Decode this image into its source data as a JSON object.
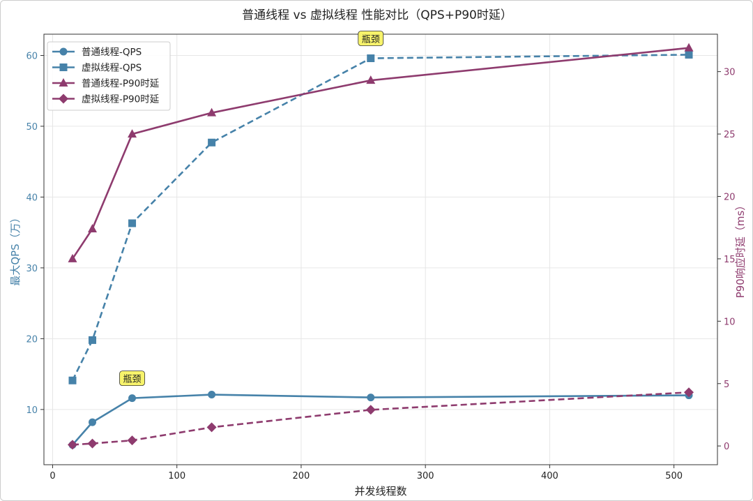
{
  "chart_data": {
    "type": "line",
    "title": "普通线程 vs 虚拟线程 性能对比（QPS+P90时延）",
    "xlabel": "并发线程数",
    "ylabel": "最大QPS（万）",
    "ylabel_right": "P90响应时延（ms）",
    "xlim": [
      -7,
      535
    ],
    "ylim": [
      2.2,
      63
    ],
    "ylim_right": [
      -1.5,
      33
    ],
    "xticks": [
      0,
      100,
      200,
      300,
      400,
      500
    ],
    "yticks": [
      10,
      20,
      30,
      40,
      50,
      60
    ],
    "yticks_right": [
      0,
      5,
      10,
      15,
      20,
      25,
      30
    ],
    "grid": true,
    "legend_position": "top-left",
    "x": [
      16,
      32,
      64,
      128,
      256,
      512
    ],
    "series": [
      {
        "name": "普通线程-QPS",
        "axis": "left",
        "values": [
          5.0,
          8.2,
          11.6,
          12.1,
          11.7,
          12.0
        ],
        "color": "#4682a9",
        "marker": "circle",
        "dash": false
      },
      {
        "name": "虚拟线程-QPS",
        "axis": "left",
        "values": [
          14.1,
          19.8,
          36.3,
          47.7,
          59.6,
          60.1
        ],
        "color": "#4682a9",
        "marker": "square",
        "dash": true
      },
      {
        "name": "普通线程-P90时延",
        "axis": "right",
        "values": [
          15.0,
          17.4,
          25.0,
          26.7,
          29.3,
          31.9
        ],
        "color": "#8e3b6e",
        "marker": "triangle",
        "dash": false
      },
      {
        "name": "虚拟线程-P90时延",
        "axis": "right",
        "values": [
          0.1,
          0.2,
          0.45,
          1.5,
          2.9,
          4.3
        ],
        "color": "#8e3b6e",
        "marker": "diamond",
        "dash": true
      }
    ],
    "annotations": [
      {
        "text": "瓶颈",
        "x": 256,
        "y": 59.6,
        "axis": "left"
      },
      {
        "text": "瓶颈",
        "x": 64,
        "y": 11.6,
        "axis": "left"
      }
    ]
  }
}
